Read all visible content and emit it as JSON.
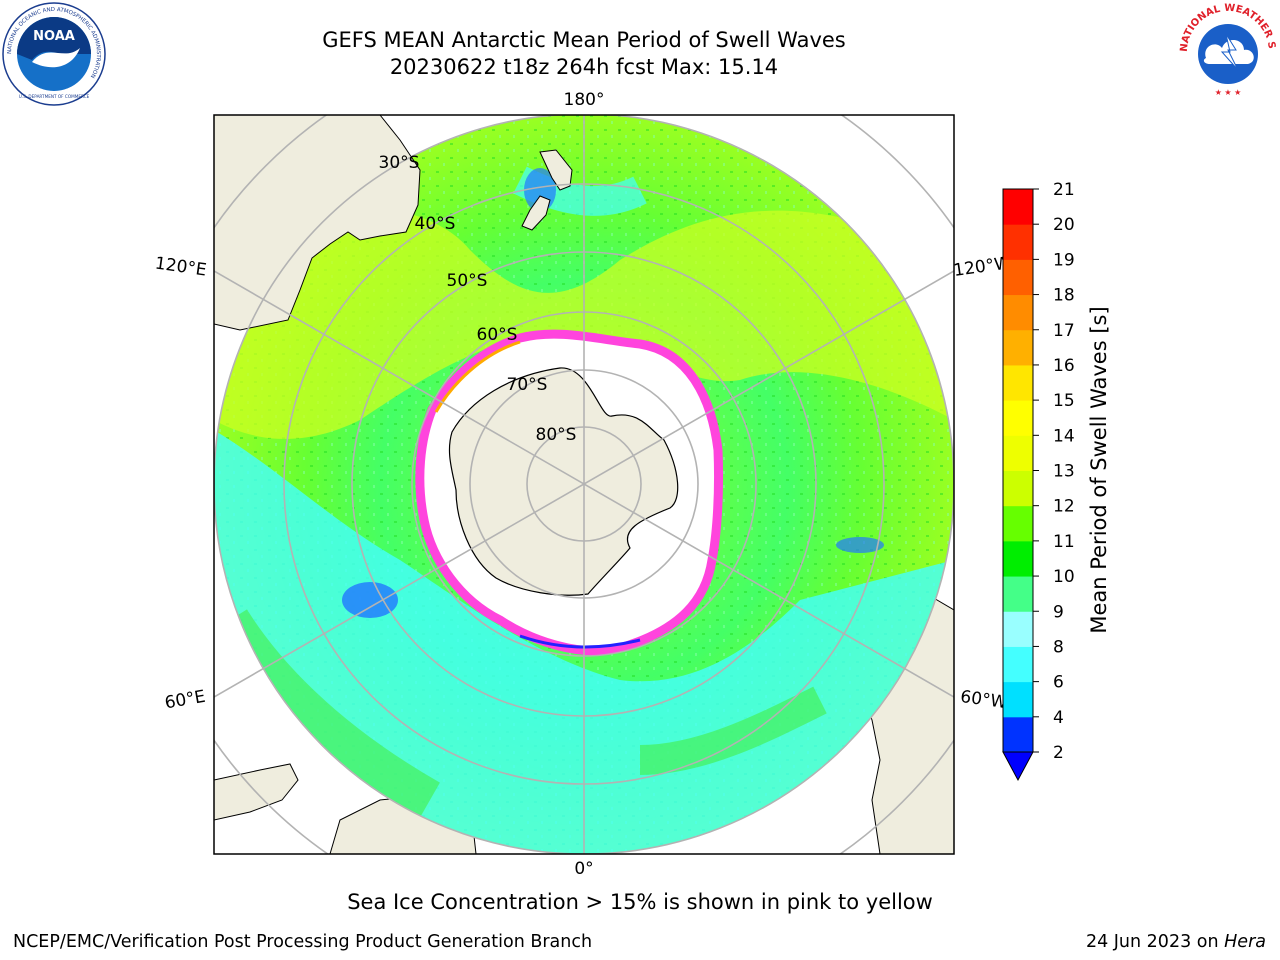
{
  "header": {
    "title_line1": "GEFS MEAN Antarctic Mean Period of Swell Waves",
    "title_line2": "20230622 t18z 264h fcst   Max: 15.14"
  },
  "logos": {
    "left": {
      "name": "NOAA",
      "ring_text": "NATIONAL OCEANIC AND ATMOSPHERIC ADMINISTRATION",
      "bottom_text": "U.S. DEPARTMENT OF COMMERCE"
    },
    "right": {
      "ring_text": "NATIONAL WEATHER SERVICE"
    }
  },
  "map": {
    "projection": "south-polar-stereographic",
    "lon_labels": {
      "top": "180°",
      "bottom": "0°",
      "upper_left": "120°E",
      "lower_left": "60°E",
      "upper_right": "120°W",
      "lower_right": "60°W"
    },
    "lat_labels": [
      "30°S",
      "40°S",
      "50°S",
      "60°S",
      "70°S",
      "80°S"
    ],
    "colors": {
      "ocean_land": "#efedde",
      "ice_shelf": "#ffffff",
      "grid": "#b3b3b3",
      "sea_ice_edge": "#ff44dd"
    }
  },
  "colorbar": {
    "label": "Mean Period of Swell Waves [s]",
    "ticks": [
      "2",
      "4",
      "6",
      "8",
      "9",
      "10",
      "11",
      "12",
      "13",
      "14",
      "15",
      "16",
      "17",
      "18",
      "19",
      "20",
      "21"
    ],
    "colors": [
      "#0033ff",
      "#00e0ff",
      "#44ffff",
      "#99ffff",
      "#44ff88",
      "#00ee00",
      "#66ff00",
      "#ccff00",
      "#eeff00",
      "#ffff00",
      "#ffe600",
      "#ffb000",
      "#ff8c00",
      "#ff6000",
      "#ff3000",
      "#ff0000"
    ],
    "extend_min_color": "#0000ff"
  },
  "caption": "Sea Ice Concentration > 15% is shown in pink to yellow",
  "footer": {
    "left": "NCEP/EMC/Verification Post Processing Product Generation Branch",
    "right_date": "24 Jun 2023 on ",
    "right_host": "Hera"
  }
}
